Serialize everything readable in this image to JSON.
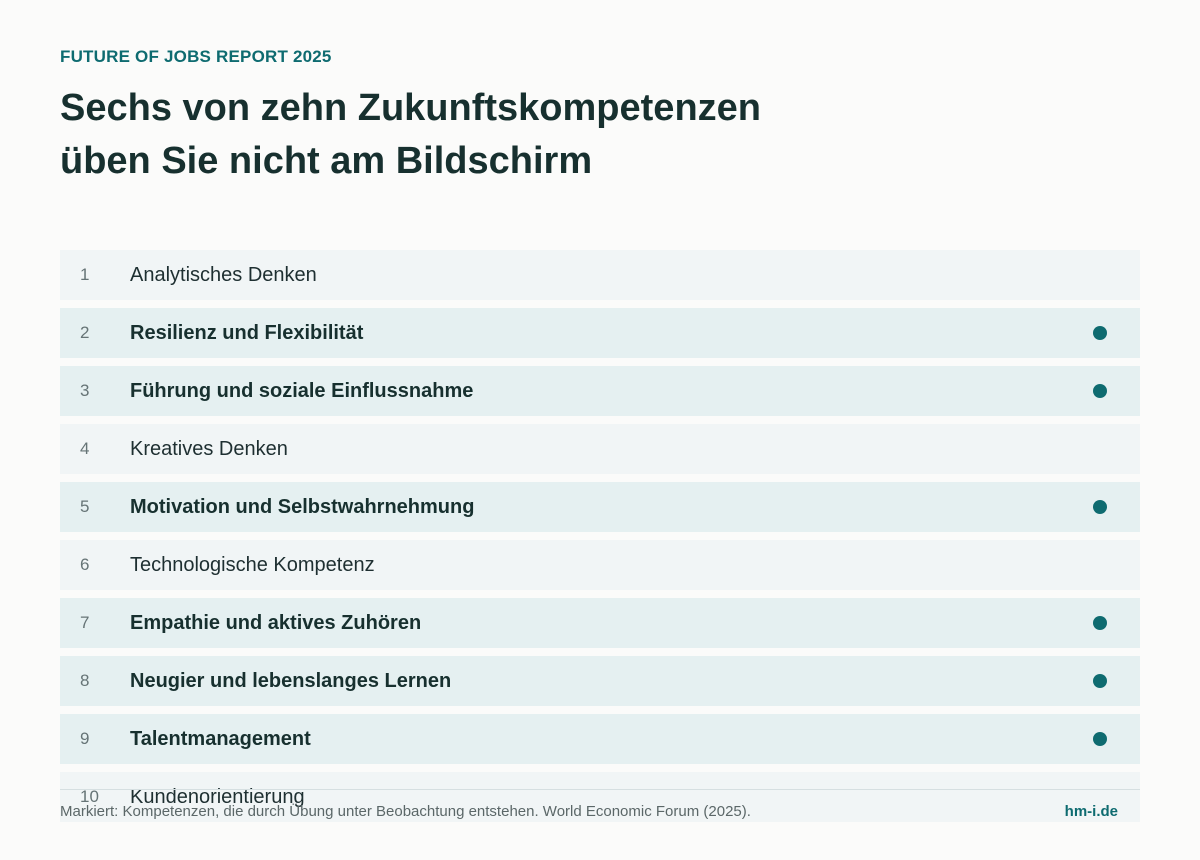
{
  "header": {
    "kicker": "FUTURE OF JOBS REPORT 2025",
    "headline_line1": "Sechs von zehn Zukunftskompetenzen",
    "headline_line2": "üben Sie nicht am Bildschirm"
  },
  "skills": [
    {
      "rank": "1",
      "label": "Analytisches Denken",
      "marked": false
    },
    {
      "rank": "2",
      "label": "Resilienz und Flexibilität",
      "marked": true
    },
    {
      "rank": "3",
      "label": "Führung und soziale Einflussnahme",
      "marked": true
    },
    {
      "rank": "4",
      "label": "Kreatives Denken",
      "marked": false
    },
    {
      "rank": "5",
      "label": "Motivation und Selbstwahrnehmung",
      "marked": true
    },
    {
      "rank": "6",
      "label": "Technologische Kompetenz",
      "marked": false
    },
    {
      "rank": "7",
      "label": "Empathie und aktives Zuhören",
      "marked": true
    },
    {
      "rank": "8",
      "label": "Neugier und lebenslanges Lernen",
      "marked": true
    },
    {
      "rank": "9",
      "label": "Talentmanagement",
      "marked": true
    },
    {
      "rank": "10",
      "label": "Kundenorientierung",
      "marked": false
    }
  ],
  "footer": {
    "note": "Markiert: Kompetenzen, die durch Übung unter Beobachtung entstehen. World Economic Forum (2025).",
    "brand": "hm-i.de"
  },
  "colors": {
    "accent": "#0e6b70",
    "marker_dot": "#0e6b70"
  },
  "icons": {
    "marker": "filled-circle"
  }
}
